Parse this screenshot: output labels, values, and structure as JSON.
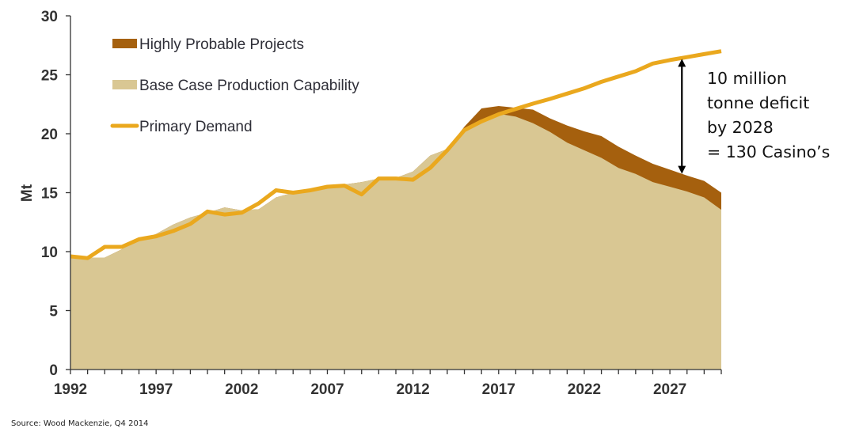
{
  "chart_data": {
    "type": "area",
    "title": "",
    "xlabel": "",
    "ylabel": "Mt",
    "ylim": [
      0,
      30
    ],
    "xlim": [
      1992,
      2030
    ],
    "yticks": [
      0,
      5,
      10,
      15,
      20,
      25,
      30
    ],
    "xtick_labels": [
      "1992",
      "1997",
      "2002",
      "2007",
      "2012",
      "2017",
      "2022",
      "2027"
    ],
    "grid": false,
    "legend_position": "top-left",
    "x": [
      1992,
      1993,
      1994,
      1995,
      1996,
      1997,
      1998,
      1999,
      2000,
      2001,
      2002,
      2003,
      2004,
      2005,
      2006,
      2007,
      2008,
      2009,
      2010,
      2011,
      2012,
      2013,
      2014,
      2015,
      2016,
      2017,
      2018,
      2019,
      2020,
      2021,
      2022,
      2023,
      2024,
      2025,
      2026,
      2027,
      2028,
      2029,
      2030
    ],
    "series": [
      {
        "name": "Highly Probable Projects",
        "kind": "stacked-area-top",
        "color": "#A5600E",
        "values": [
          9.5,
          9.5,
          9.5,
          10.2,
          10.9,
          11.5,
          12.3,
          12.9,
          13.3,
          13.75,
          13.5,
          13.6,
          14.6,
          15.0,
          15.3,
          15.55,
          15.7,
          15.9,
          16.2,
          16.25,
          16.8,
          18.15,
          18.7,
          20.6,
          22.15,
          22.35,
          22.2,
          22.05,
          21.3,
          20.7,
          20.2,
          19.8,
          18.9,
          18.15,
          17.45,
          16.95,
          16.45,
          16.0,
          15.0
        ]
      },
      {
        "name": "Base Case Production Capability",
        "kind": "area",
        "color": "#D9C793",
        "values": [
          9.5,
          9.5,
          9.5,
          10.2,
          10.9,
          11.5,
          12.3,
          12.9,
          13.3,
          13.75,
          13.5,
          13.6,
          14.6,
          15.0,
          15.3,
          15.55,
          15.7,
          15.9,
          16.2,
          16.25,
          16.8,
          18.15,
          18.7,
          20.4,
          21.2,
          21.7,
          21.45,
          20.9,
          20.15,
          19.25,
          18.6,
          17.95,
          17.1,
          16.6,
          15.9,
          15.5,
          15.1,
          14.6,
          13.55
        ]
      },
      {
        "name": "Primary Demand",
        "kind": "line",
        "color": "#EAA81E",
        "values": [
          9.6,
          9.45,
          10.4,
          10.4,
          11.05,
          11.3,
          11.75,
          12.35,
          13.4,
          13.15,
          13.3,
          14.1,
          15.2,
          15.0,
          15.2,
          15.5,
          15.6,
          14.85,
          16.2,
          16.2,
          16.1,
          17.1,
          18.6,
          20.3,
          21.05,
          21.65,
          22.1,
          22.55,
          22.95,
          23.4,
          23.85,
          24.4,
          24.85,
          25.3,
          25.95,
          26.25,
          26.5,
          26.75,
          27.0
        ]
      }
    ],
    "annotation": {
      "lines": [
        "10 million",
        "tonne deficit",
        "by 2028",
        "= 130 Casino’s"
      ],
      "arrow_x": 2027.7,
      "arrow_from": 26.35,
      "arrow_to": 16.6
    }
  },
  "source": "Source: Wood Mackenzie, Q4 2014"
}
